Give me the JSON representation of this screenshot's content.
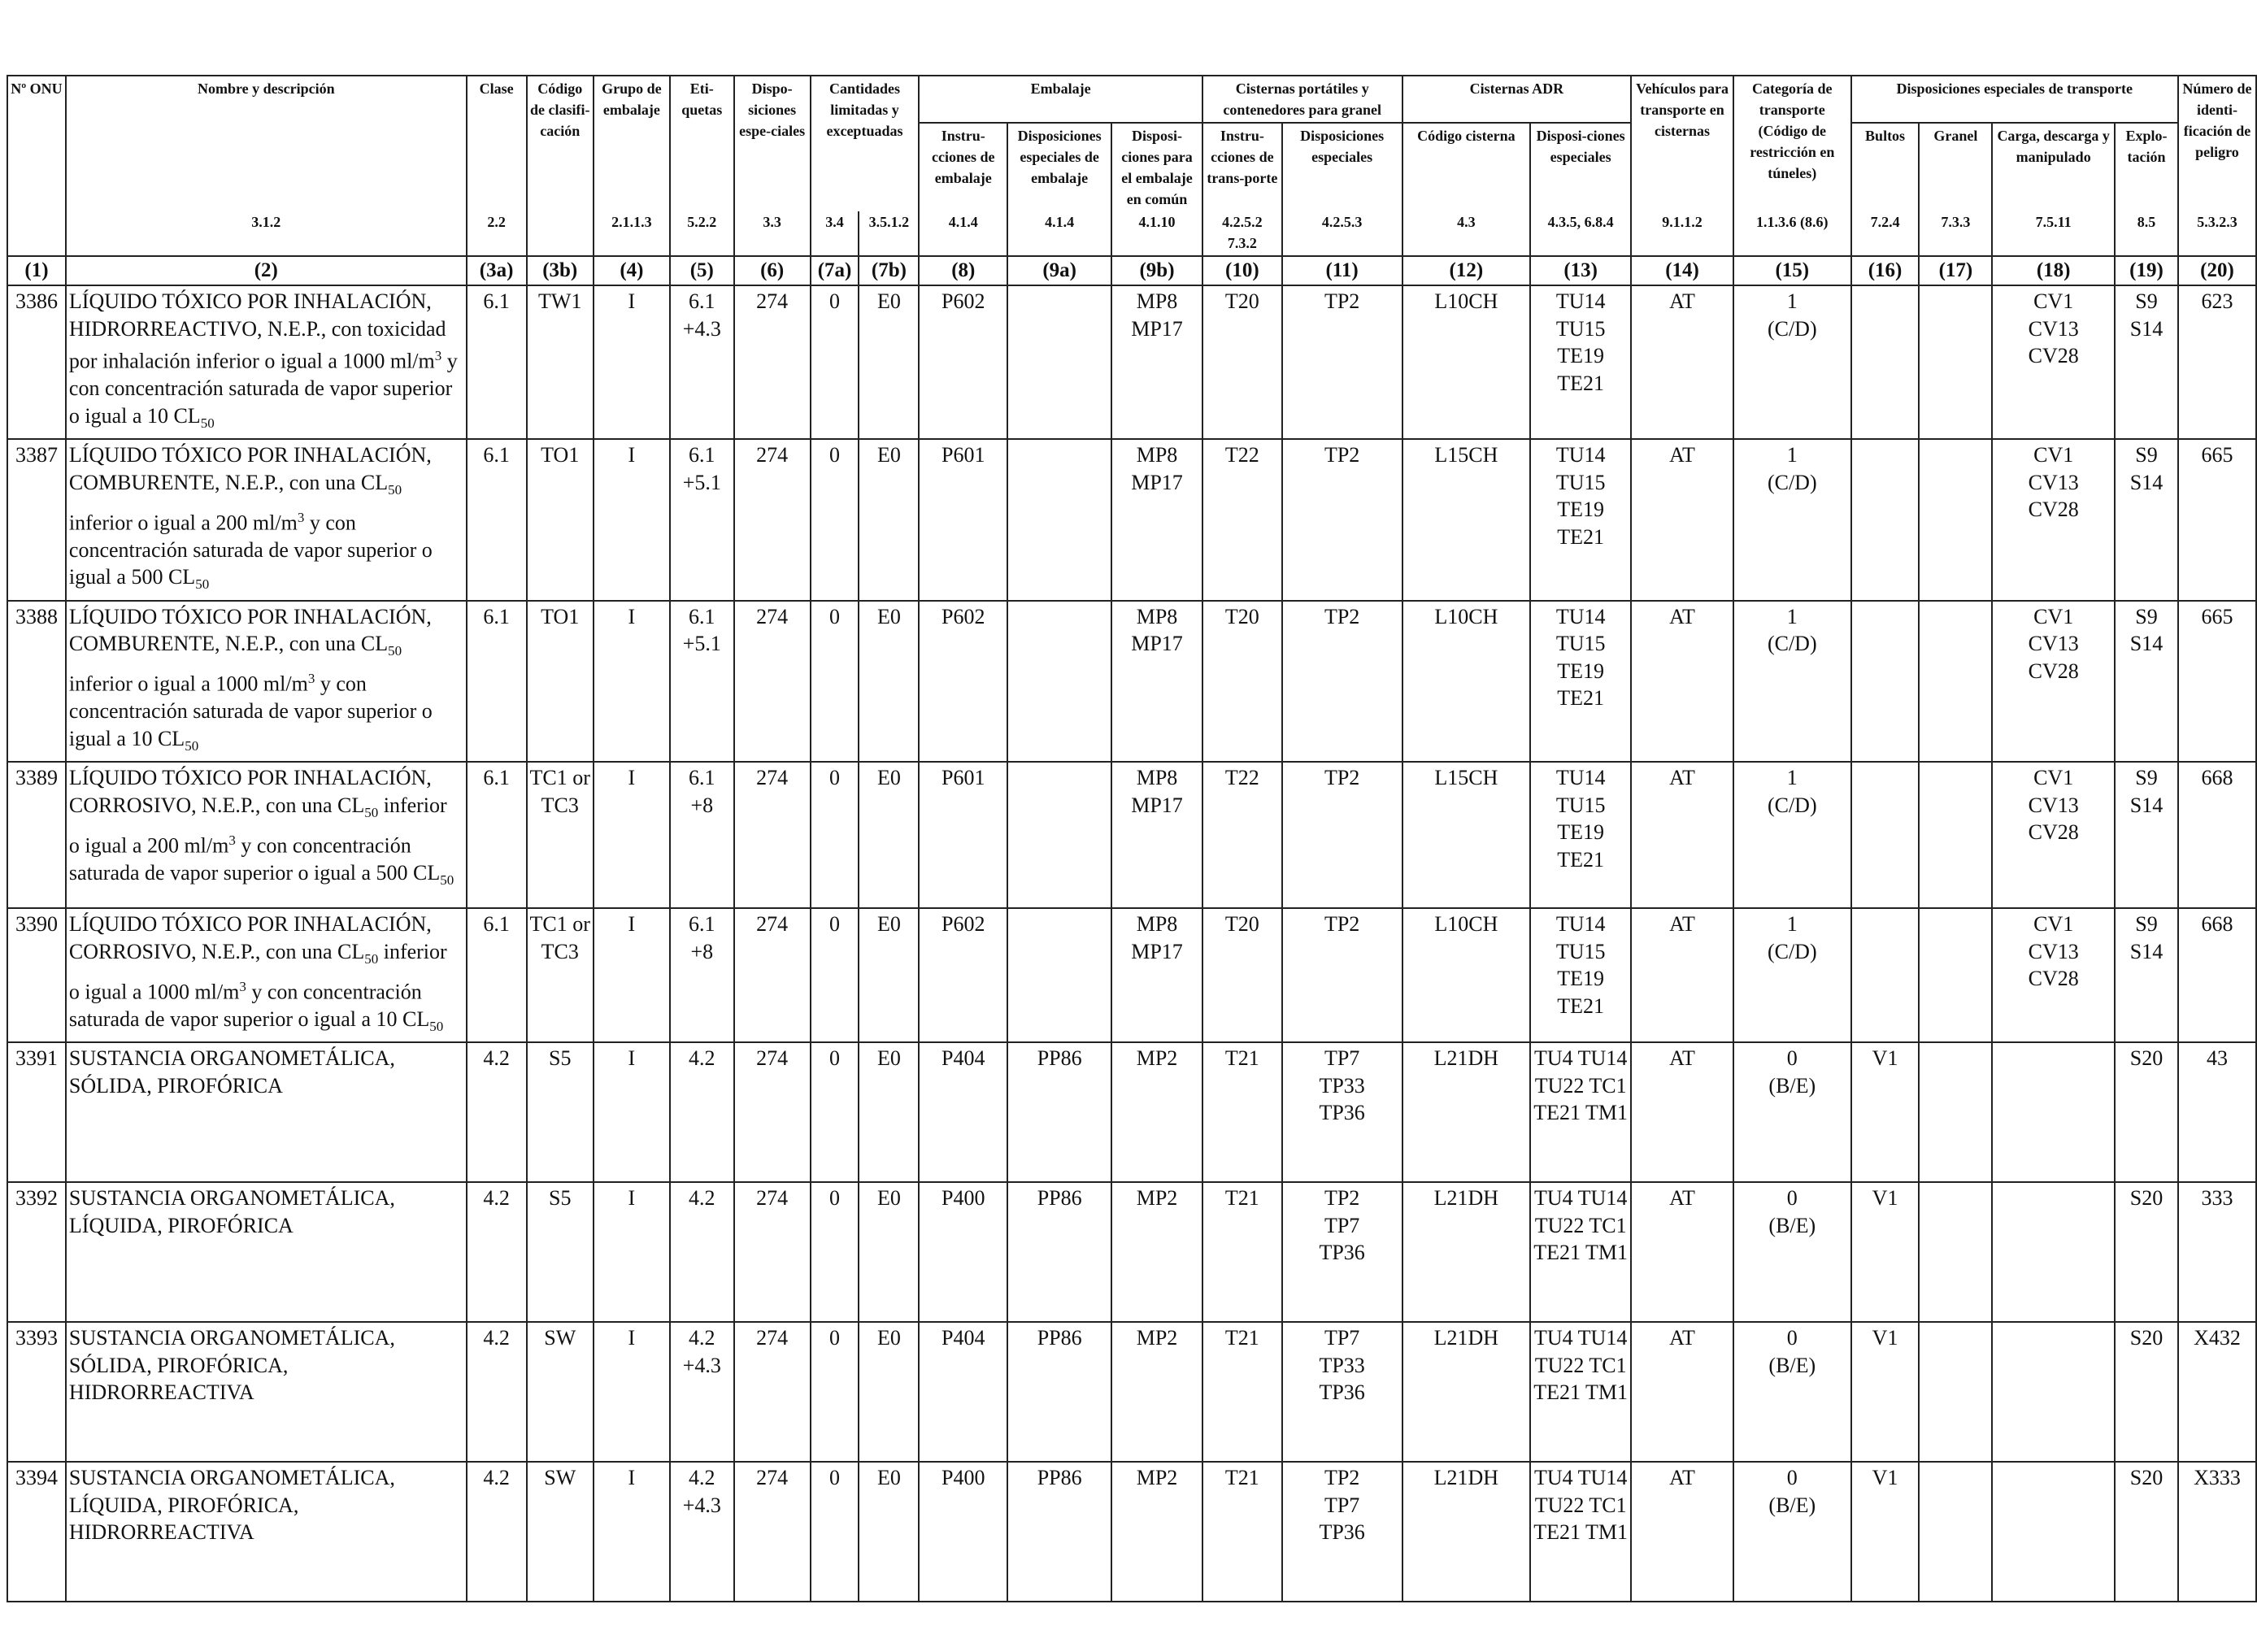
{
  "header": {
    "c1": "Nº ONU",
    "c2": "Nombre y descripción",
    "c3a": "Clase",
    "c3b": "Código de clasifi-cación",
    "c4": "Grupo de embalaje",
    "c5": "Eti-quetas",
    "c6": "Dispo-siciones espe-ciales",
    "c7_group": "Cantidades limitadas y exceptuadas",
    "c8_10_group": "Embalaje",
    "c8": "Instru-cciones de embalaje",
    "c9a": "Disposiciones especiales de embalaje",
    "c9b": "Disposi-ciones para el embalaje en común",
    "c10_11_group": "Cisternas portátiles y contenedores para granel",
    "c10": "Instru-cciones de trans-porte",
    "c11": "Disposiciones especiales",
    "c12_13_group": "Cisternas ADR",
    "c12": "Código cisterna",
    "c13": "Disposi-ciones especiales",
    "c14": "Vehículos para transporte en cisternas",
    "c15": "Categoría de transporte (Código de restricción en túneles)",
    "c16_19_group": "Disposiciones especiales de transporte",
    "c16": "Bultos",
    "c17": "Granel",
    "c18": "Carga, descarga y manipulado",
    "c19": "Explo-tación",
    "c20": "Número de identi-ficación de peligro"
  },
  "refs": {
    "c2": "3.1.2",
    "c3a": "2.2",
    "c4": "2.1.1.3",
    "c5": "5.2.2",
    "c6": "3.3",
    "c7a": "3.4",
    "c7b": "3.5.1.2",
    "c8": "4.1.4",
    "c9a": "4.1.4",
    "c9b": "4.1.10",
    "c10": "4.2.5.2 7.3.2",
    "c11": "4.2.5.3",
    "c12": "4.3",
    "c13": "4.3.5, 6.8.4",
    "c14": "9.1.1.2",
    "c15": "1.1.3.6 (8.6)",
    "c16": "7.2.4",
    "c17": "7.3.3",
    "c18": "7.5.11",
    "c19": "8.5",
    "c20": "5.3.2.3"
  },
  "colnums": [
    "(1)",
    "(2)",
    "(3a)",
    "(3b)",
    "(4)",
    "(5)",
    "(6)",
    "(7a)",
    "(7b)",
    "(8)",
    "(9a)",
    "(9b)",
    "(10)",
    "(11)",
    "(12)",
    "(13)",
    "(14)",
    "(15)",
    "(16)",
    "(17)",
    "(18)",
    "(19)",
    "(20)"
  ],
  "rows": [
    {
      "un": "3386",
      "name": [
        "LÍQUIDO TÓXICO POR INHALACIÓN,",
        "HIDRORREACTIVO, N.E.P., con toxicidad",
        "por inhalación inferior o igual a 1000 ml/m",
        "3",
        " y",
        "con concentración saturada de vapor superior",
        "o igual a 10 CL",
        "50"
      ],
      "c3a": "6.1",
      "c3b": [
        "TW1"
      ],
      "c4": "I",
      "c5": [
        "6.1",
        "+4.3"
      ],
      "c6": "274",
      "c7a": "0",
      "c7b": "E0",
      "c8": "P602",
      "c9a": "",
      "c9b": [
        "MP8",
        "MP17"
      ],
      "c10": "T20",
      "c11": [
        "TP2"
      ],
      "c12": "L10CH",
      "c13": [
        "TU14",
        "TU15",
        "TE19",
        "TE21"
      ],
      "c14": "AT",
      "c15": [
        "1",
        "(C/D)"
      ],
      "c16": "",
      "c17": "",
      "c18": [
        "CV1",
        "CV13",
        "CV28"
      ],
      "c19": [
        "S9",
        "S14"
      ],
      "c20": "623"
    },
    {
      "un": "3387",
      "name": [
        "LÍQUIDO TÓXICO POR INHALACIÓN,",
        "COMBURENTE, N.E.P., con una CL",
        "50",
        "inferior o igual a 200 ml/m",
        "3",
        " y con",
        "concentración saturada de vapor superior o",
        "igual a 500 CL",
        "50"
      ],
      "c3a": "6.1",
      "c3b": [
        "TO1"
      ],
      "c4": "I",
      "c5": [
        "6.1",
        "+5.1"
      ],
      "c6": "274",
      "c7a": "0",
      "c7b": "E0",
      "c8": "P601",
      "c9a": "",
      "c9b": [
        "MP8",
        "MP17"
      ],
      "c10": "T22",
      "c11": [
        "TP2"
      ],
      "c12": "L15CH",
      "c13": [
        "TU14",
        "TU15",
        "TE19",
        "TE21"
      ],
      "c14": "AT",
      "c15": [
        "1",
        "(C/D)"
      ],
      "c16": "",
      "c17": "",
      "c18": [
        "CV1",
        "CV13",
        "CV28"
      ],
      "c19": [
        "S9",
        "S14"
      ],
      "c20": "665"
    },
    {
      "un": "3388",
      "name": [
        "LÍQUIDO TÓXICO POR INHALACIÓN,",
        "COMBURENTE, N.E.P., con una CL",
        "50",
        "inferior o igual a 1000 ml/m",
        "3",
        " y con",
        "concentración saturada de vapor superior o",
        "igual a 10 CL",
        "50"
      ],
      "c3a": "6.1",
      "c3b": [
        "TO1"
      ],
      "c4": "I",
      "c5": [
        "6.1",
        "+5.1"
      ],
      "c6": "274",
      "c7a": "0",
      "c7b": "E0",
      "c8": "P602",
      "c9a": "",
      "c9b": [
        "MP8",
        "MP17"
      ],
      "c10": "T20",
      "c11": [
        "TP2"
      ],
      "c12": "L10CH",
      "c13": [
        "TU14",
        "TU15",
        "TE19",
        "TE21"
      ],
      "c14": "AT",
      "c15": [
        "1",
        "(C/D)"
      ],
      "c16": "",
      "c17": "",
      "c18": [
        "CV1",
        "CV13",
        "CV28"
      ],
      "c19": [
        "S9",
        "S14"
      ],
      "c20": "665"
    },
    {
      "un": "3389",
      "name": [
        "LÍQUIDO TÓXICO POR INHALACIÓN,",
        "CORROSIVO, N.E.P., con una CL",
        "50",
        " inferior",
        "o igual a 200 ml/m",
        "3",
        " y con concentración",
        "saturada de vapor superior o igual a 500 CL",
        "50"
      ],
      "c3a": "6.1",
      "c3b": [
        "TC1 or",
        "TC3"
      ],
      "c4": "I",
      "c5": [
        "6.1",
        "+8"
      ],
      "c6": "274",
      "c7a": "0",
      "c7b": "E0",
      "c8": "P601",
      "c9a": "",
      "c9b": [
        "MP8",
        "MP17"
      ],
      "c10": "T22",
      "c11": [
        "TP2"
      ],
      "c12": "L15CH",
      "c13": [
        "TU14",
        "TU15",
        "TE19",
        "TE21"
      ],
      "c14": "AT",
      "c15": [
        "1",
        "(C/D)"
      ],
      "c16": "",
      "c17": "",
      "c18": [
        "CV1",
        "CV13",
        "CV28"
      ],
      "c19": [
        "S9",
        "S14"
      ],
      "c20": "668"
    },
    {
      "un": "3390",
      "name": [
        "LÍQUIDO TÓXICO POR INHALACIÓN,",
        "CORROSIVO, N.E.P., con una CL",
        "50",
        " inferior",
        "o igual a 1000 ml/m",
        "3",
        " y con concentración",
        "saturada de vapor superior o igual a 10 CL",
        "50"
      ],
      "c3a": "6.1",
      "c3b": [
        "TC1 or",
        "TC3"
      ],
      "c4": "I",
      "c5": [
        "6.1",
        "+8"
      ],
      "c6": "274",
      "c7a": "0",
      "c7b": "E0",
      "c8": "P602",
      "c9a": "",
      "c9b": [
        "MP8",
        "MP17"
      ],
      "c10": "T20",
      "c11": [
        "TP2"
      ],
      "c12": "L10CH",
      "c13": [
        "TU14",
        "TU15",
        "TE19",
        "TE21"
      ],
      "c14": "AT",
      "c15": [
        "1",
        "(C/D)"
      ],
      "c16": "",
      "c17": "",
      "c18": [
        "CV1",
        "CV13",
        "CV28"
      ],
      "c19": [
        "S9",
        "S14"
      ],
      "c20": "668"
    },
    {
      "un": "3391",
      "name": [
        "SUSTANCIA ORGANOMETÁLICA,",
        "SÓLIDA, PIROFÓRICA"
      ],
      "c3a": "4.2",
      "c3b": [
        "S5"
      ],
      "c4": "I",
      "c5": [
        "4.2"
      ],
      "c6": "274",
      "c7a": "0",
      "c7b": "E0",
      "c8": "P404",
      "c9a": "PP86",
      "c9b": [
        "MP2"
      ],
      "c10": "T21",
      "c11": [
        "TP7",
        "TP33",
        "TP36"
      ],
      "c12": "L21DH",
      "c13": [
        "TU4 TU14",
        "TU22 TC1",
        "TE21 TM1"
      ],
      "c14": "AT",
      "c15": [
        "0",
        "(B/E)"
      ],
      "c16": "V1",
      "c17": "",
      "c18": [],
      "c19": [
        "S20"
      ],
      "c20": "43"
    },
    {
      "un": "3392",
      "name": [
        "SUSTANCIA ORGANOMETÁLICA,",
        "LÍQUIDA, PIROFÓRICA"
      ],
      "c3a": "4.2",
      "c3b": [
        "S5"
      ],
      "c4": "I",
      "c5": [
        "4.2"
      ],
      "c6": "274",
      "c7a": "0",
      "c7b": "E0",
      "c8": "P400",
      "c9a": "PP86",
      "c9b": [
        "MP2"
      ],
      "c10": "T21",
      "c11": [
        "TP2",
        "TP7",
        "TP36"
      ],
      "c12": "L21DH",
      "c13": [
        "TU4 TU14",
        "TU22 TC1",
        "TE21 TM1"
      ],
      "c14": "AT",
      "c15": [
        "0",
        "(B/E)"
      ],
      "c16": "V1",
      "c17": "",
      "c18": [],
      "c19": [
        "S20"
      ],
      "c20": "333"
    },
    {
      "un": "3393",
      "name": [
        "SUSTANCIA ORGANOMETÁLICA,",
        "SÓLIDA, PIROFÓRICA,",
        "HIDRORREACTIVA"
      ],
      "c3a": "4.2",
      "c3b": [
        "SW"
      ],
      "c4": "I",
      "c5": [
        "4.2",
        "+4.3"
      ],
      "c6": "274",
      "c7a": "0",
      "c7b": "E0",
      "c8": "P404",
      "c9a": "PP86",
      "c9b": [
        "MP2"
      ],
      "c10": "T21",
      "c11": [
        "TP7",
        "TP33",
        "TP36"
      ],
      "c12": "L21DH",
      "c13": [
        "TU4 TU14",
        "TU22 TC1",
        "TE21 TM1"
      ],
      "c14": "AT",
      "c15": [
        "0",
        "(B/E)"
      ],
      "c16": "V1",
      "c17": "",
      "c18": [],
      "c19": [
        "S20"
      ],
      "c20": "X432"
    },
    {
      "un": "3394",
      "name": [
        "SUSTANCIA ORGANOMETÁLICA,",
        "LÍQUIDA, PIROFÓRICA,",
        "HIDRORREACTIVA"
      ],
      "c3a": "4.2",
      "c3b": [
        "SW"
      ],
      "c4": "I",
      "c5": [
        "4.2",
        "+4.3"
      ],
      "c6": "274",
      "c7a": "0",
      "c7b": "E0",
      "c8": "P400",
      "c9a": "PP86",
      "c9b": [
        "MP2"
      ],
      "c10": "T21",
      "c11": [
        "TP2",
        "TP7",
        "TP36"
      ],
      "c12": "L21DH",
      "c13": [
        "TU4 TU14",
        "TU22 TC1",
        "TE21 TM1"
      ],
      "c14": "AT",
      "c15": [
        "0",
        "(B/E)"
      ],
      "c16": "V1",
      "c17": "",
      "c18": [],
      "c19": [
        "S20"
      ],
      "c20": "X333"
    }
  ]
}
